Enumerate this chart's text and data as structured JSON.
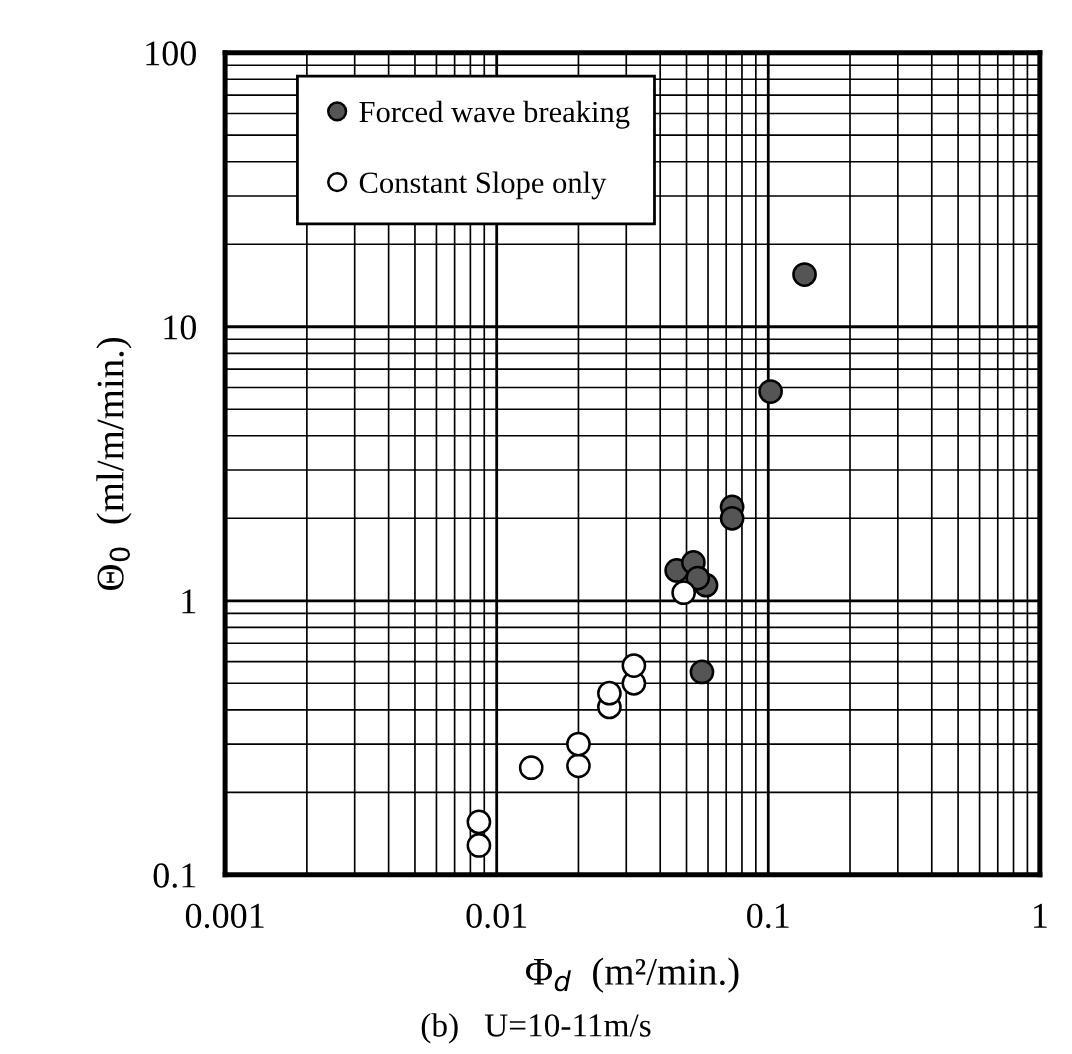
{
  "chart_data": {
    "type": "scatter",
    "xlabel": "Φ$_{d}$  (m²/min.)",
    "ylabel": "Θ$_{0}$  (ml/m/min.)",
    "annotations": [
      "(b)   U=10-11m/s"
    ],
    "log": "xy",
    "xlim": [
      0.001,
      1
    ],
    "xticks": [
      0.001,
      0.01,
      0.1,
      1
    ],
    "ylim": [
      0.1,
      100
    ],
    "yticks": [
      0.1,
      1,
      10,
      100
    ],
    "grid": true,
    "legend": "top left",
    "marker": "circle",
    "series": [
      {
        "name": "Forced wave breaking",
        "color": "#555555",
        "x": [
          0.057,
          0.046,
          0.053,
          0.059,
          0.055,
          0.0736,
          0.0736,
          0.102,
          0.136
        ],
        "values": [
          0.55,
          1.29,
          1.38,
          1.14,
          1.21,
          2.2,
          2.0,
          5.8,
          15.5
        ]
      },
      {
        "name": "Constant Slope only",
        "color": "#ffffff",
        "x": [
          0.0086,
          0.0086,
          0.0134,
          0.02,
          0.02,
          0.026,
          0.026,
          0.032,
          0.032,
          0.0488
        ],
        "values": [
          0.156,
          0.128,
          0.246,
          0.25,
          0.3,
          0.41,
          0.46,
          0.5,
          0.58,
          1.07
        ]
      }
    ]
  }
}
